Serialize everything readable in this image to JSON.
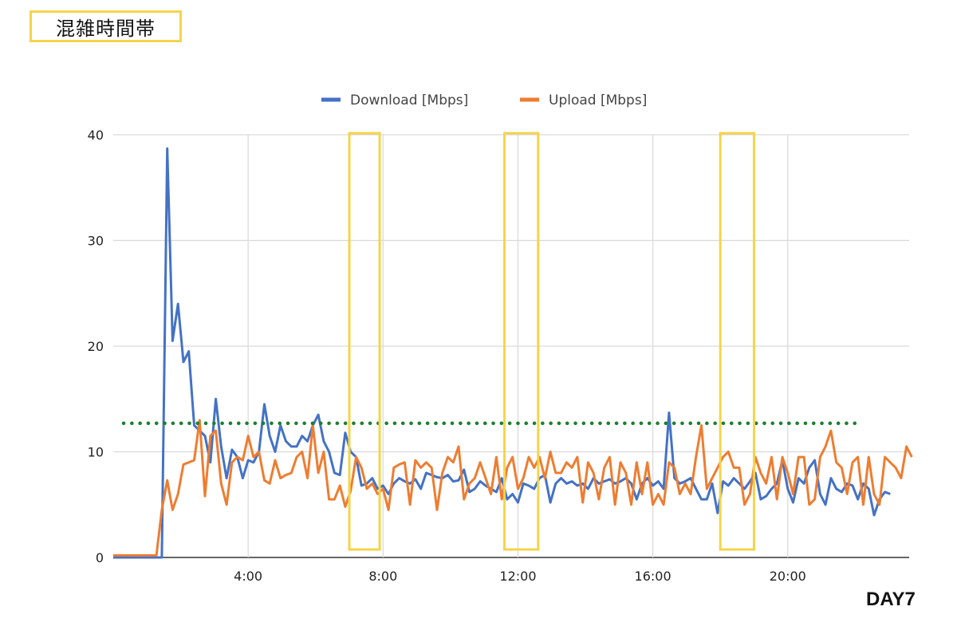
{
  "header": {
    "title": "混雑時間帯"
  },
  "footer": {
    "day_label": "DAY7"
  },
  "colors": {
    "download": "#4472c4",
    "upload": "#ed7d31",
    "grid": "#d9d9d9",
    "highlight": "#f5d44b",
    "threshold": "#1a7f2e"
  },
  "chart_data": {
    "type": "line",
    "xlabel": "",
    "ylabel": "",
    "xlim": [
      0,
      23.6
    ],
    "ylim": [
      0,
      40
    ],
    "x_ticks": [
      {
        "value": 4,
        "label": "4:00"
      },
      {
        "value": 8,
        "label": "8:00"
      },
      {
        "value": 12,
        "label": "12:00"
      },
      {
        "value": 16,
        "label": "16:00"
      },
      {
        "value": 20,
        "label": "20:00"
      }
    ],
    "y_ticks": [
      {
        "value": 0,
        "label": "0"
      },
      {
        "value": 10,
        "label": "10"
      },
      {
        "value": 20,
        "label": "20"
      },
      {
        "value": 30,
        "label": "30"
      },
      {
        "value": 40,
        "label": "40"
      }
    ],
    "grid": true,
    "legend_position": "top",
    "x_step": 0.16,
    "series": [
      {
        "name": "Download [Mbps]",
        "color": "#4472c4",
        "values": [
          0,
          0,
          0,
          0,
          0,
          0,
          0,
          0,
          0,
          0,
          38.7,
          20.5,
          24,
          18.5,
          19.5,
          12.5,
          12,
          11.5,
          9,
          15,
          10.5,
          7.5,
          10.2,
          9.5,
          7.5,
          9.2,
          9,
          10,
          14.5,
          11.5,
          10,
          12.5,
          11,
          10.5,
          10.5,
          11.5,
          11,
          12.5,
          13.5,
          11,
          10,
          8,
          7.8,
          11.8,
          10,
          9.5,
          6.8,
          7,
          7.5,
          6.5,
          6.8,
          6,
          7,
          7.5,
          7.2,
          7,
          7.4,
          6.5,
          8,
          7.8,
          7.6,
          7.5,
          7.8,
          7.2,
          7.3,
          8.3,
          6.2,
          6.5,
          7.2,
          6.8,
          6.5,
          6.2,
          7.5,
          5.5,
          6,
          5.2,
          7,
          6.8,
          6.5,
          7.5,
          7.8,
          5.2,
          7,
          7.5,
          7,
          7.2,
          6.8,
          7,
          6.5,
          7.5,
          7,
          7.2,
          7.4,
          7,
          7.2,
          7.5,
          7,
          5.5,
          7,
          7.5,
          6.8,
          7.2,
          6.5,
          13.7,
          7.5,
          7,
          7.2,
          7.5,
          6.5,
          5.5,
          5.5,
          7,
          4.2,
          7.2,
          6.8,
          7.5,
          7,
          6.5,
          7.2,
          8,
          5.5,
          5.8,
          6.5,
          7,
          9.2,
          6.5,
          5.2,
          7.5,
          7,
          8.5,
          9.2,
          6,
          5,
          7.5,
          6.5,
          6.2,
          7,
          6.8,
          5.5,
          7,
          6.5,
          4,
          5.5,
          6.2,
          6
        ]
      },
      {
        "name": "Upload [Mbps]",
        "color": "#ed7d31",
        "values": [
          0.2,
          0.2,
          0.2,
          0.2,
          0.2,
          0.2,
          0.2,
          0.2,
          0.2,
          4.5,
          7.3,
          4.5,
          6,
          8.8,
          9,
          9.2,
          13,
          5.8,
          11.5,
          12,
          7,
          5,
          9,
          9.5,
          9.2,
          11.5,
          9.5,
          10,
          7.3,
          7,
          9.2,
          7.5,
          7.8,
          8,
          9.5,
          10,
          7.5,
          12.5,
          8,
          10,
          5.5,
          5.5,
          6.8,
          4.8,
          6.3,
          9.5,
          8.5,
          6.5,
          7,
          6,
          6.5,
          4.5,
          8.5,
          8.8,
          9,
          5,
          9.2,
          8.5,
          9,
          8.5,
          4.5,
          8,
          9.5,
          9,
          10.5,
          5.5,
          7,
          7.5,
          9,
          7.5,
          6,
          9.5,
          5.5,
          8.5,
          9.5,
          6.5,
          7.5,
          9.5,
          8.5,
          9.5,
          7.5,
          10,
          8,
          8,
          9,
          8.5,
          9.5,
          5.2,
          9,
          8,
          5.5,
          8.5,
          9.5,
          5,
          9,
          8,
          5,
          9,
          6,
          9,
          5,
          6,
          5,
          9,
          8.5,
          6,
          7,
          6,
          9.5,
          12.5,
          6.5,
          7.5,
          8.5,
          9.5,
          10,
          8.5,
          8.5,
          5,
          6,
          9.5,
          8,
          7,
          9.5,
          5.5,
          9.5,
          8,
          6,
          9.5,
          9.5,
          5,
          5.5,
          9.5,
          10.5,
          12,
          9,
          8.5,
          6,
          9,
          9.5,
          5,
          9.5,
          6,
          5,
          9.5,
          9,
          8.5,
          7.5,
          10.5,
          9.5
        ]
      }
    ],
    "threshold_value": 12.7,
    "highlight_ranges": [
      [
        7,
        7.9
      ],
      [
        11.6,
        12.6
      ],
      [
        18,
        19
      ]
    ]
  }
}
